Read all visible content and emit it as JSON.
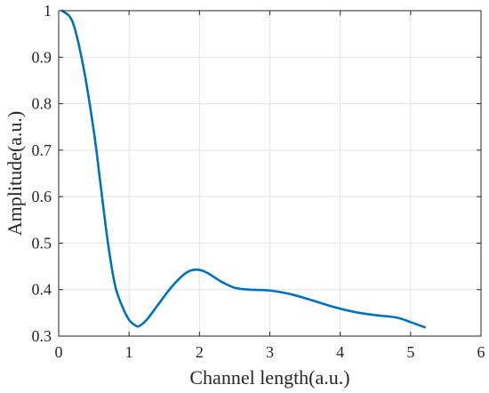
{
  "chart_data": {
    "type": "line",
    "title": "",
    "xlabel": "Channel length(a.u.)",
    "ylabel": "Amplitude(a.u.)",
    "xlim": [
      0,
      6
    ],
    "ylim": [
      0.3,
      1
    ],
    "x_ticks": [
      "0",
      "1",
      "2",
      "3",
      "4",
      "5",
      "6"
    ],
    "y_ticks": [
      "0.3",
      "0.4",
      "0.5",
      "0.6",
      "0.7",
      "0.8",
      "0.9",
      "1"
    ],
    "grid": true,
    "line_color": "#0072BD",
    "series": [
      {
        "x": [
          0.05,
          0.2,
          0.35,
          0.5,
          0.6,
          0.7,
          0.8,
          0.9,
          1.0,
          1.1,
          1.15,
          1.25,
          1.4,
          1.6,
          1.8,
          1.95,
          2.1,
          2.3,
          2.5,
          2.7,
          3.0,
          3.3,
          3.6,
          3.9,
          4.2,
          4.5,
          4.8,
          5.0,
          5.2
        ],
        "y": [
          1.0,
          0.975,
          0.88,
          0.74,
          0.62,
          0.5,
          0.41,
          0.365,
          0.335,
          0.322,
          0.322,
          0.335,
          0.365,
          0.405,
          0.435,
          0.443,
          0.437,
          0.418,
          0.404,
          0.4,
          0.398,
          0.39,
          0.377,
          0.363,
          0.352,
          0.345,
          0.34,
          0.33,
          0.319
        ]
      }
    ]
  }
}
